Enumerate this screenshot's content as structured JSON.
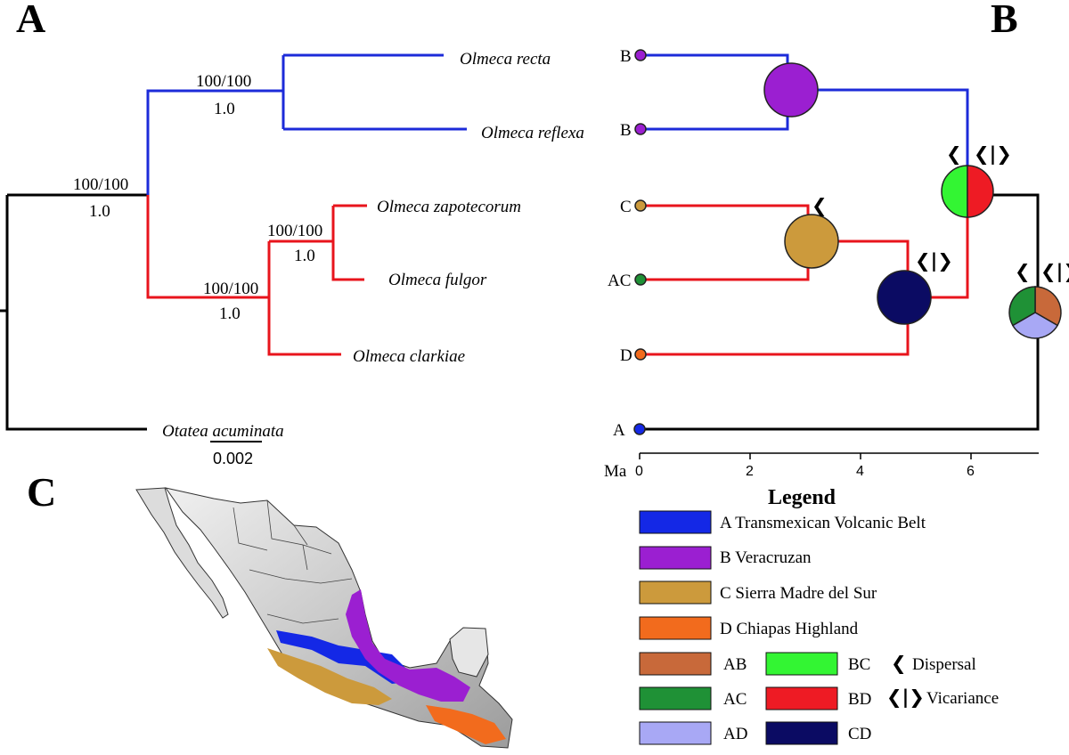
{
  "panels": {
    "a": "A",
    "b": "B",
    "c": "C"
  },
  "colors": {
    "outgroup": "#000000",
    "clade_b": "#1c2bd9",
    "clade_red": "#e8141c",
    "A": "#1428e6",
    "B": "#9b1fd1",
    "C": "#cc9a3c",
    "D": "#f26b1d",
    "AB": "#c8693a",
    "AC": "#1f9136",
    "AD": "#a8a8f5",
    "BC": "#33f533",
    "BD": "#ee1b24",
    "CD": "#0b0b63"
  },
  "tree_a": {
    "taxa": [
      "Olmeca recta",
      "Olmeca reflexa",
      "Olmeca zapotecorum",
      "Olmeca fulgor",
      "Olmeca clarkiae",
      "Otatea acuminata"
    ],
    "supports": [
      {
        "bs": "100/100",
        "pp": "1.0"
      },
      {
        "bs": "100/100",
        "pp": "1.0"
      },
      {
        "bs": "100/100",
        "pp": "1.0"
      },
      {
        "bs": "100/100",
        "pp": "1.0"
      }
    ],
    "scale_bar": "0.002"
  },
  "tree_b": {
    "tip_areas": [
      "B",
      "B",
      "C",
      "AC",
      "D",
      "A"
    ],
    "axis_label": "Ma",
    "ticks": [
      "0",
      "2",
      "4",
      "6"
    ],
    "event_symbols": {
      "dispersal": "❮",
      "vicariance": "❮|❯"
    }
  },
  "legend": {
    "title": "Legend",
    "areas": [
      {
        "key": "A",
        "label": "A Transmexican Volcanic Belt"
      },
      {
        "key": "B",
        "label": "B Veracruzan"
      },
      {
        "key": "C",
        "label": "C Sierra Madre del Sur"
      },
      {
        "key": "D",
        "label": "D Chiapas Highland"
      }
    ],
    "combos_left": [
      {
        "key": "AB",
        "label": "AB"
      },
      {
        "key": "AC",
        "label": "AC"
      },
      {
        "key": "AD",
        "label": "AD"
      }
    ],
    "combos_right": [
      {
        "key": "BC",
        "label": "BC"
      },
      {
        "key": "BD",
        "label": "BD"
      },
      {
        "key": "CD",
        "label": "CD"
      }
    ],
    "events": [
      {
        "symbol": "❮",
        "label": "Dispersal"
      },
      {
        "symbol": "❮|❯",
        "label": "Vicariance"
      }
    ]
  }
}
